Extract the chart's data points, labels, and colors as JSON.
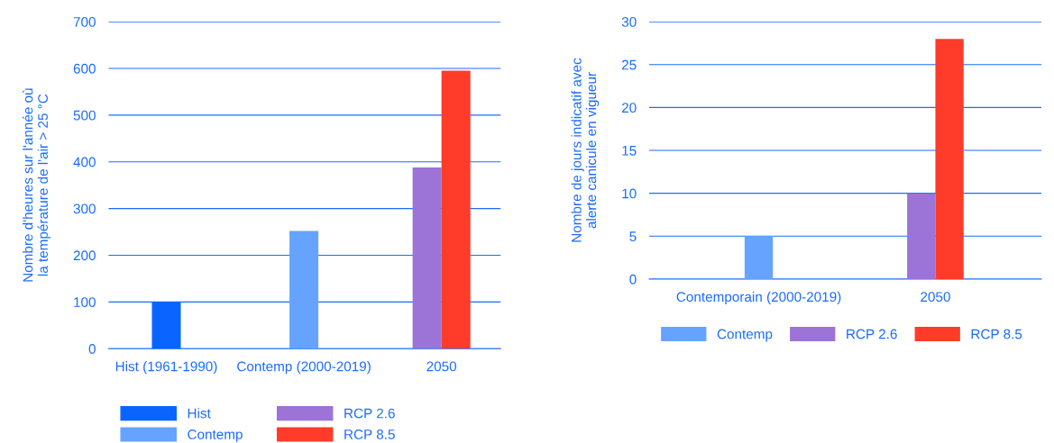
{
  "chart_data": [
    {
      "type": "bar",
      "ylabel": "Nombre d'heures sur l'année où\nla température de l'air > 25 °C",
      "categories": [
        "Hist (1961-1990)",
        "Contemp (2000-2019)",
        "2050"
      ],
      "series": [
        {
          "name": "Hist",
          "color": "#0a64ff",
          "values": [
            100,
            null,
            null
          ]
        },
        {
          "name": "Contemp",
          "color": "#66a3ff",
          "values": [
            null,
            252,
            null
          ]
        },
        {
          "name": "RCP 2.6",
          "color": "#9c73d6",
          "values": [
            null,
            null,
            388
          ]
        },
        {
          "name": "RCP 8.5",
          "color": "#ff3b2a",
          "values": [
            null,
            null,
            595
          ]
        }
      ],
      "ylim": [
        0,
        700
      ],
      "yticks": [
        0,
        100,
        200,
        300,
        400,
        500,
        600,
        700
      ],
      "grid": "y",
      "legend": "bottom"
    },
    {
      "type": "bar",
      "ylabel": "Nombre de jours indicatif avec\nalerte canicule en vigueur",
      "categories": [
        "Contemporain (2000-2019)",
        "2050"
      ],
      "series": [
        {
          "name": "Contemp",
          "color": "#66a3ff",
          "values": [
            5,
            null
          ]
        },
        {
          "name": "RCP 2.6",
          "color": "#9c73d6",
          "values": [
            null,
            10
          ]
        },
        {
          "name": "RCP 8.5",
          "color": "#ff3b2a",
          "values": [
            null,
            28
          ]
        }
      ],
      "ylim": [
        0,
        30
      ],
      "yticks": [
        0,
        5,
        10,
        15,
        20,
        25,
        30
      ],
      "grid": "y",
      "legend": "bottom"
    }
  ]
}
